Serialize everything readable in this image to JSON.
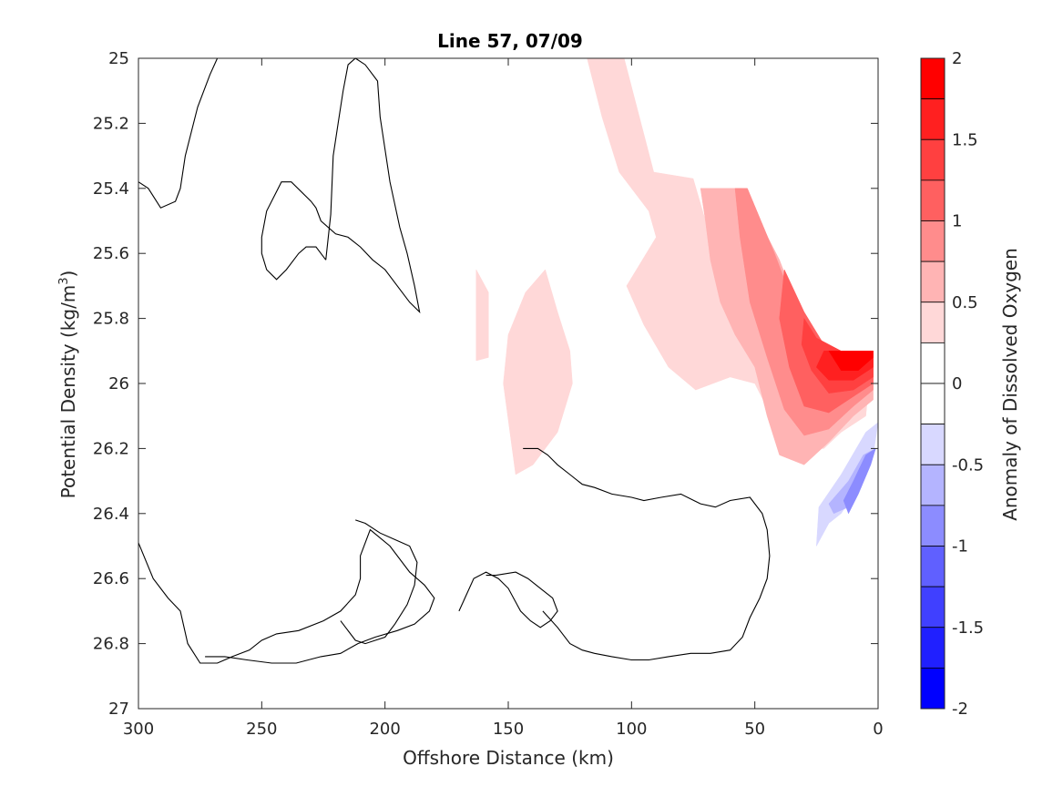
{
  "chart_data": {
    "type": "contour",
    "title": "Line 57, 07/09",
    "xlabel": "Offshore Distance (km)",
    "ylabel_main": "Potential Density (kg/m",
    "ylabel_sup": "3",
    "ylabel_close": ")",
    "xlim": [
      300,
      0
    ],
    "ylim": [
      25,
      27
    ],
    "x_reversed": true,
    "y_reversed": true,
    "xticks": [
      300,
      250,
      200,
      150,
      100,
      50,
      0
    ],
    "xtick_labels": [
      "300",
      "250",
      "200",
      "150",
      "100",
      "50",
      "0"
    ],
    "yticks": [
      25,
      25.2,
      25.4,
      25.6,
      25.8,
      26,
      26.2,
      26.4,
      26.6,
      26.8,
      27
    ],
    "ytick_labels": [
      "25",
      "25.2",
      "25.4",
      "25.6",
      "25.8",
      "26",
      "26.2",
      "26.4",
      "26.6",
      "26.8",
      "27"
    ],
    "colorbar": {
      "label": "Anomaly of Dissolved Oxygen",
      "range": [
        -2,
        2
      ],
      "ticks": [
        2,
        1.5,
        1,
        0.5,
        0,
        -0.5,
        -1,
        -1.5,
        -2
      ],
      "tick_labels": [
        "2",
        "1.5",
        "1",
        "0.5",
        "0",
        "-0.5",
        "-1",
        "-1.5",
        "-2"
      ],
      "bins": [
        {
          "lo": 1.75,
          "hi": 2.0,
          "color": "#ff0000"
        },
        {
          "lo": 1.5,
          "hi": 1.75,
          "color": "#ff2020"
        },
        {
          "lo": 1.25,
          "hi": 1.5,
          "color": "#ff4040"
        },
        {
          "lo": 1.0,
          "hi": 1.25,
          "color": "#ff6060"
        },
        {
          "lo": 0.75,
          "hi": 1.0,
          "color": "#ff8c8c"
        },
        {
          "lo": 0.5,
          "hi": 0.75,
          "color": "#ffb4b4"
        },
        {
          "lo": 0.25,
          "hi": 0.5,
          "color": "#ffd8d8"
        },
        {
          "lo": 0.0,
          "hi": 0.25,
          "color": "#ffffff"
        },
        {
          "lo": -0.25,
          "hi": 0.0,
          "color": "#ffffff"
        },
        {
          "lo": -0.5,
          "hi": -0.25,
          "color": "#d8d8ff"
        },
        {
          "lo": -0.75,
          "hi": -0.5,
          "color": "#b4b4ff"
        },
        {
          "lo": -1.0,
          "hi": -0.75,
          "color": "#8c8cff"
        },
        {
          "lo": -1.25,
          "hi": -1.0,
          "color": "#6060ff"
        },
        {
          "lo": -1.5,
          "hi": -1.25,
          "color": "#4040ff"
        },
        {
          "lo": -1.75,
          "hi": -1.5,
          "color": "#2020ff"
        },
        {
          "lo": -2.0,
          "hi": -1.75,
          "color": "#0000ff"
        }
      ]
    },
    "filled_regions": [
      {
        "level": 0.25,
        "color": "#ffd8d8",
        "points": [
          [
            118,
            25.0
          ],
          [
            103,
            25.0
          ],
          [
            91,
            25.35
          ],
          [
            75,
            25.37
          ],
          [
            70,
            25.5
          ],
          [
            58,
            25.4
          ],
          [
            45,
            25.62
          ],
          [
            40,
            25.8
          ],
          [
            32,
            25.92
          ],
          [
            20,
            25.98
          ],
          [
            10,
            26.02
          ],
          [
            4,
            26.02
          ],
          [
            5,
            26.1
          ],
          [
            15,
            26.15
          ],
          [
            22,
            26.2
          ],
          [
            30,
            26.2
          ],
          [
            40,
            26.15
          ],
          [
            50,
            26.0
          ],
          [
            60,
            25.98
          ],
          [
            74,
            26.02
          ],
          [
            85,
            25.95
          ],
          [
            95,
            25.82
          ],
          [
            102,
            25.7
          ],
          [
            90,
            25.55
          ],
          [
            93,
            25.47
          ],
          [
            105,
            25.35
          ],
          [
            112,
            25.18
          ]
        ]
      },
      {
        "level": 0.25,
        "color": "#ffd8d8",
        "points": [
          [
            135,
            25.65
          ],
          [
            143,
            25.72
          ],
          [
            150,
            25.85
          ],
          [
            152,
            26.0
          ],
          [
            147,
            26.28
          ],
          [
            140,
            26.25
          ],
          [
            130,
            26.15
          ],
          [
            124,
            26.0
          ],
          [
            125,
            25.9
          ],
          [
            130,
            25.78
          ]
        ]
      },
      {
        "level": 0.25,
        "color": "#ffd8d8",
        "points": [
          [
            163,
            25.65
          ],
          [
            158,
            25.72
          ],
          [
            158,
            25.92
          ],
          [
            163,
            25.93
          ]
        ]
      },
      {
        "level": 0.5,
        "color": "#ffb4b4",
        "points": [
          [
            72,
            25.4
          ],
          [
            55,
            25.4
          ],
          [
            40,
            25.62
          ],
          [
            30,
            25.82
          ],
          [
            20,
            25.93
          ],
          [
            10,
            25.97
          ],
          [
            2,
            25.98
          ],
          [
            2,
            26.05
          ],
          [
            10,
            26.1
          ],
          [
            20,
            26.18
          ],
          [
            30,
            26.25
          ],
          [
            40,
            26.22
          ],
          [
            45,
            26.1
          ],
          [
            50,
            25.95
          ],
          [
            58,
            25.85
          ],
          [
            64,
            25.75
          ],
          [
            68,
            25.62
          ],
          [
            70,
            25.5
          ]
        ]
      },
      {
        "level": 0.75,
        "color": "#ff8c8c",
        "points": [
          [
            58,
            25.4
          ],
          [
            53,
            25.4
          ],
          [
            42,
            25.6
          ],
          [
            32,
            25.8
          ],
          [
            22,
            25.9
          ],
          [
            12,
            25.95
          ],
          [
            2,
            25.97
          ],
          [
            2,
            26.02
          ],
          [
            10,
            26.07
          ],
          [
            20,
            26.14
          ],
          [
            30,
            26.16
          ],
          [
            38,
            26.08
          ],
          [
            45,
            25.92
          ],
          [
            52,
            25.75
          ],
          [
            56,
            25.55
          ]
        ]
      },
      {
        "level": 1.0,
        "color": "#ff6060",
        "points": [
          [
            38,
            25.65
          ],
          [
            30,
            25.78
          ],
          [
            22,
            25.88
          ],
          [
            12,
            25.92
          ],
          [
            2,
            25.95
          ],
          [
            2,
            26.0
          ],
          [
            10,
            26.04
          ],
          [
            20,
            26.09
          ],
          [
            30,
            26.07
          ],
          [
            36,
            25.95
          ],
          [
            40,
            25.8
          ]
        ]
      },
      {
        "level": 1.25,
        "color": "#ff4040",
        "points": [
          [
            30,
            25.8
          ],
          [
            25,
            25.86
          ],
          [
            15,
            25.9
          ],
          [
            2,
            25.92
          ],
          [
            2,
            25.98
          ],
          [
            10,
            26.02
          ],
          [
            20,
            26.03
          ],
          [
            27,
            25.96
          ],
          [
            31,
            25.88
          ]
        ]
      },
      {
        "level": 1.5,
        "color": "#ff2020",
        "points": [
          [
            22,
            25.9
          ],
          [
            10,
            25.9
          ],
          [
            2,
            25.9
          ],
          [
            2,
            25.95
          ],
          [
            10,
            25.99
          ],
          [
            20,
            25.99
          ],
          [
            25,
            25.95
          ]
        ]
      },
      {
        "level": 1.75,
        "color": "#ff0000",
        "points": [
          [
            20,
            25.9
          ],
          [
            2,
            25.9
          ],
          [
            2,
            25.92
          ],
          [
            8,
            25.96
          ],
          [
            15,
            25.96
          ]
        ]
      },
      {
        "level": -0.25,
        "color": "#d8d8ff",
        "points": [
          [
            0,
            26.12
          ],
          [
            5,
            26.15
          ],
          [
            15,
            26.28
          ],
          [
            24,
            26.38
          ],
          [
            25,
            26.5
          ],
          [
            20,
            26.43
          ],
          [
            15,
            26.4
          ],
          [
            8,
            26.32
          ],
          [
            2,
            26.22
          ]
        ]
      },
      {
        "level": -0.5,
        "color": "#b4b4ff",
        "points": [
          [
            1,
            26.2
          ],
          [
            6,
            26.22
          ],
          [
            12,
            26.3
          ],
          [
            20,
            26.37
          ],
          [
            18,
            26.4
          ],
          [
            12,
            26.38
          ],
          [
            6,
            26.3
          ]
        ]
      },
      {
        "level": -0.75,
        "color": "#8c8cff",
        "points": [
          [
            1,
            26.2
          ],
          [
            5,
            26.22
          ],
          [
            10,
            26.3
          ],
          [
            14,
            26.36
          ],
          [
            12,
            26.4
          ],
          [
            8,
            26.34
          ],
          [
            3,
            26.25
          ]
        ]
      }
    ],
    "zero_contours": [
      [
        [
          300,
          25.38
        ],
        [
          296,
          25.4
        ],
        [
          291,
          25.46
        ],
        [
          285,
          25.44
        ],
        [
          283,
          25.4
        ],
        [
          281,
          25.3
        ],
        [
          276,
          25.15
        ],
        [
          271,
          25.05
        ],
        [
          268,
          25.0
        ]
      ],
      [
        [
          224,
          25.62
        ],
        [
          222,
          25.48
        ],
        [
          221,
          25.3
        ],
        [
          219,
          25.2
        ],
        [
          217,
          25.1
        ],
        [
          215,
          25.02
        ],
        [
          212,
          25.0
        ],
        [
          208,
          25.02
        ],
        [
          203,
          25.07
        ],
        [
          202,
          25.18
        ],
        [
          198,
          25.38
        ],
        [
          194,
          25.52
        ],
        [
          191,
          25.6
        ],
        [
          188,
          25.7
        ],
        [
          186,
          25.78
        ],
        [
          190,
          25.75
        ],
        [
          195,
          25.7
        ],
        [
          200,
          25.65
        ],
        [
          205,
          25.62
        ],
        [
          210,
          25.58
        ],
        [
          215,
          25.55
        ],
        [
          220,
          25.54
        ],
        [
          226,
          25.5
        ],
        [
          228,
          25.46
        ],
        [
          230,
          25.44
        ],
        [
          238,
          25.38
        ],
        [
          242,
          25.38
        ],
        [
          248,
          25.47
        ],
        [
          250,
          25.55
        ],
        [
          250,
          25.6
        ],
        [
          248,
          25.65
        ],
        [
          244,
          25.68
        ],
        [
          240,
          25.65
        ],
        [
          235,
          25.6
        ],
        [
          232,
          25.58
        ],
        [
          228,
          25.58
        ],
        [
          224,
          25.62
        ]
      ],
      [
        [
          300,
          26.49
        ],
        [
          294,
          26.6
        ],
        [
          288,
          26.66
        ],
        [
          283,
          26.7
        ],
        [
          280,
          26.8
        ],
        [
          275,
          26.86
        ],
        [
          268,
          26.86
        ],
        [
          262,
          26.84
        ],
        [
          255,
          26.82
        ],
        [
          250,
          26.79
        ],
        [
          244,
          26.77
        ],
        [
          235,
          26.76
        ],
        [
          225,
          26.73
        ],
        [
          218,
          26.7
        ],
        [
          212,
          26.65
        ],
        [
          210,
          26.6
        ],
        [
          210,
          26.53
        ],
        [
          206,
          26.45
        ],
        [
          198,
          26.5
        ],
        [
          190,
          26.58
        ],
        [
          184,
          26.62
        ],
        [
          180,
          26.66
        ],
        [
          182,
          26.7
        ],
        [
          188,
          26.74
        ],
        [
          195,
          26.76
        ],
        [
          204,
          26.78
        ],
        [
          211,
          26.8
        ],
        [
          218,
          26.83
        ],
        [
          226,
          26.84
        ],
        [
          236,
          26.86
        ],
        [
          246,
          26.86
        ],
        [
          256,
          26.85
        ],
        [
          265,
          26.84
        ],
        [
          273,
          26.84
        ]
      ],
      [
        [
          218,
          26.73
        ],
        [
          212,
          26.79
        ],
        [
          208,
          26.8
        ],
        [
          200,
          26.78
        ],
        [
          196,
          26.74
        ],
        [
          191,
          26.68
        ],
        [
          188,
          26.62
        ],
        [
          187,
          26.55
        ],
        [
          190,
          26.5
        ],
        [
          196,
          26.48
        ],
        [
          202,
          26.46
        ],
        [
          208,
          26.43
        ],
        [
          212,
          26.42
        ]
      ],
      [
        [
          170,
          26.7
        ],
        [
          164,
          26.6
        ],
        [
          159,
          26.58
        ],
        [
          154,
          26.6
        ],
        [
          150,
          26.63
        ],
        [
          145,
          26.7
        ],
        [
          141,
          26.73
        ],
        [
          137,
          26.75
        ],
        [
          133,
          26.73
        ],
        [
          130,
          26.7
        ],
        [
          132,
          26.66
        ],
        [
          137,
          26.63
        ],
        [
          142,
          26.6
        ],
        [
          147,
          26.58
        ],
        [
          155,
          26.59
        ],
        [
          159,
          26.59
        ]
      ],
      [
        [
          136,
          26.7
        ],
        [
          130,
          26.75
        ],
        [
          125,
          26.8
        ],
        [
          120,
          26.82
        ],
        [
          115,
          26.83
        ],
        [
          108,
          26.84
        ],
        [
          100,
          26.85
        ],
        [
          93,
          26.85
        ],
        [
          85,
          26.84
        ],
        [
          76,
          26.83
        ],
        [
          68,
          26.83
        ],
        [
          60,
          26.82
        ],
        [
          55,
          26.78
        ],
        [
          52,
          26.72
        ],
        [
          48,
          26.66
        ],
        [
          45,
          26.6
        ],
        [
          44,
          26.53
        ],
        [
          45,
          26.45
        ],
        [
          47,
          26.4
        ],
        [
          52,
          26.35
        ],
        [
          60,
          26.36
        ],
        [
          66,
          26.38
        ],
        [
          72,
          26.37
        ],
        [
          80,
          26.34
        ],
        [
          88,
          26.35
        ],
        [
          95,
          26.36
        ],
        [
          100,
          26.35
        ],
        [
          108,
          26.34
        ],
        [
          115,
          26.32
        ],
        [
          120,
          26.31
        ],
        [
          125,
          26.28
        ],
        [
          130,
          26.25
        ],
        [
          134,
          26.22
        ],
        [
          138,
          26.2
        ],
        [
          144,
          26.2
        ]
      ]
    ]
  }
}
